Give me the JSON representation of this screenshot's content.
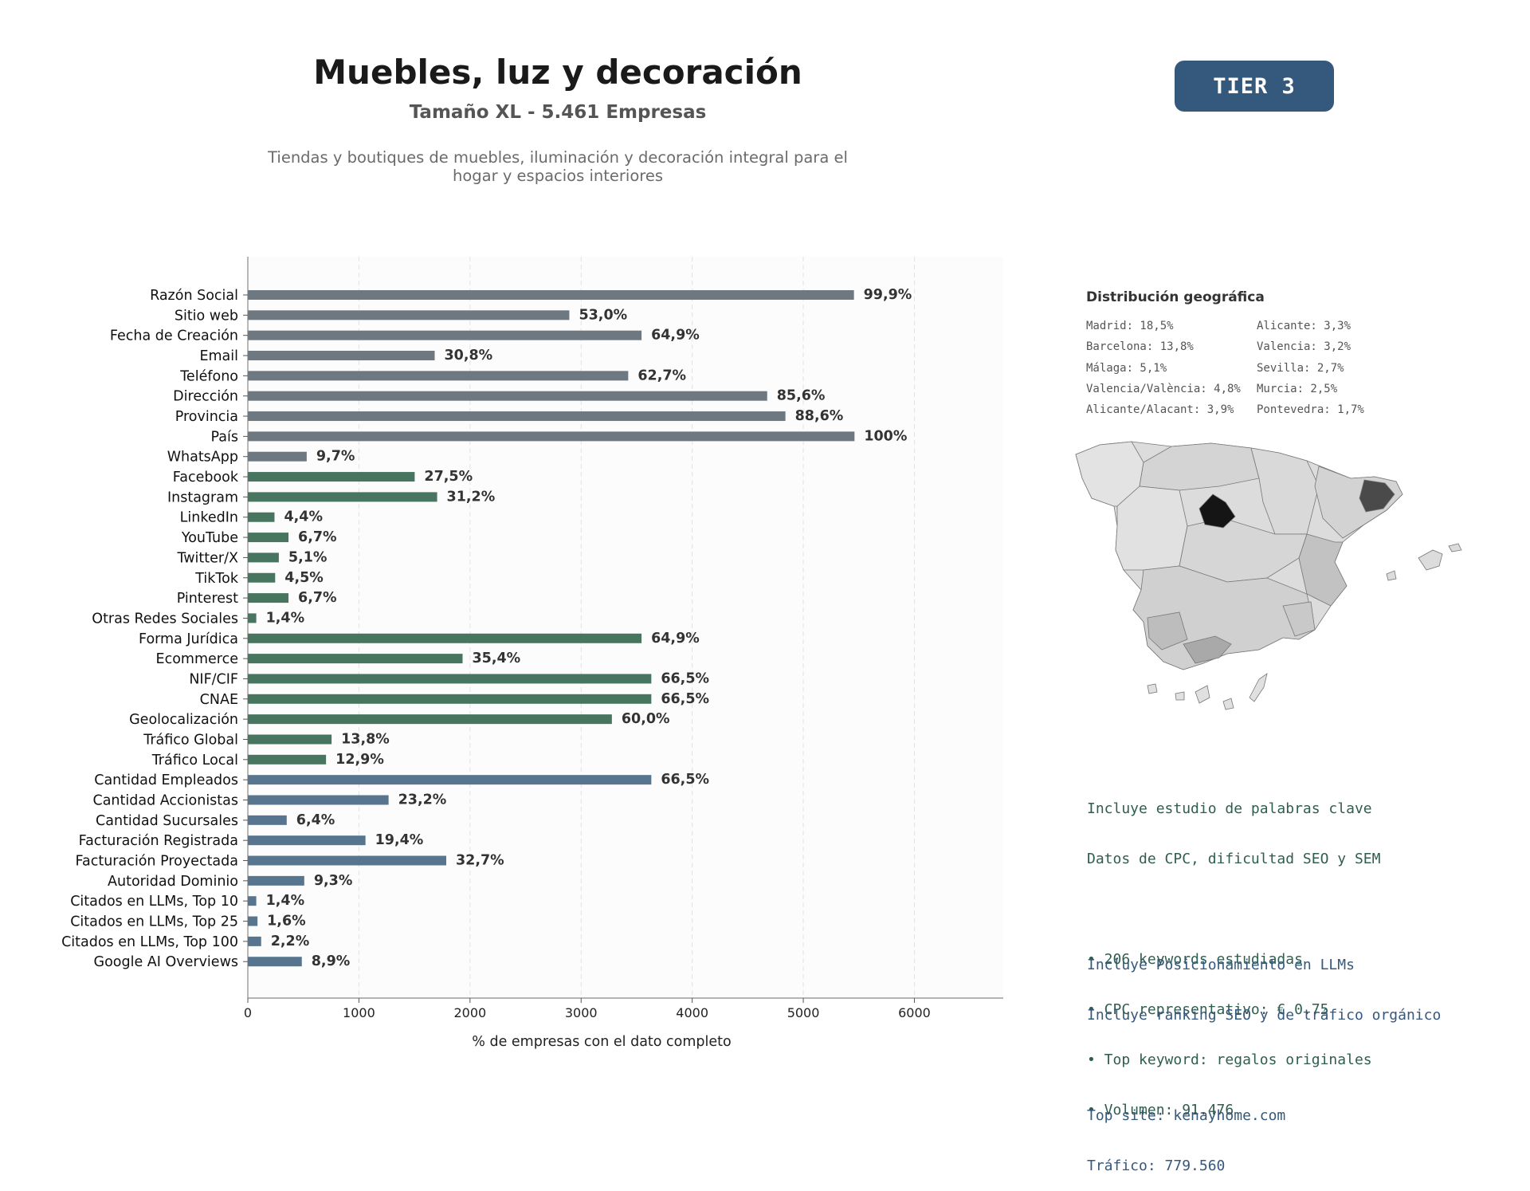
{
  "header": {
    "title": "Muebles, luz y decoración",
    "subtitle": "Tamaño XL - 5.461 Empresas",
    "description": "Tiendas y boutiques de muebles, iluminación y decoración integral para el hogar y espacios interiores",
    "tier_badge": "TIER 3"
  },
  "colors": {
    "basic": "#6e7881",
    "digital": "#47755f",
    "business": "#57758f",
    "badge": "#35587d",
    "madrid": "#151515",
    "barcelona": "#4a4a4a"
  },
  "chart_data": {
    "type": "bar",
    "orientation": "horizontal",
    "xlabel": "% de empresas con el dato completo",
    "ylabel": "",
    "xlim": [
      0,
      6800
    ],
    "xticks": [
      0,
      1000,
      2000,
      3000,
      4000,
      5000,
      6000
    ],
    "grid": "x dashed",
    "categories": [
      "Razón Social",
      "Sitio web",
      "Fecha de Creación",
      "Email",
      "Teléfono",
      "Dirección",
      "Provincia",
      "País",
      "WhatsApp",
      "Facebook",
      "Instagram",
      "LinkedIn",
      "YouTube",
      "Twitter/X",
      "TikTok",
      "Pinterest",
      "Otras Redes Sociales",
      "Forma Jurídica",
      "Ecommerce",
      "NIF/CIF",
      "CNAE",
      "Geolocalización",
      "Tráfico Global",
      "Tráfico Local",
      "Cantidad Empleados",
      "Cantidad Accionistas",
      "Cantidad Sucursales",
      "Facturación Registrada",
      "Facturación Proyectada",
      "Autoridad Dominio",
      "Citados en LLMs, Top 10",
      "Citados en LLMs, Top 25",
      "Citados en LLMs, Top 100",
      "Google AI Overviews"
    ],
    "values": [
      5456,
      2894,
      3544,
      1682,
      3424,
      4675,
      4839,
      5461,
      530,
      1502,
      1704,
      240,
      366,
      279,
      246,
      366,
      76,
      3544,
      1933,
      3632,
      3632,
      3277,
      754,
      704,
      3632,
      1267,
      350,
      1059,
      1786,
      508,
      76,
      87,
      120,
      486
    ],
    "labels": [
      "99,9%",
      "53,0%",
      "64,9%",
      "30,8%",
      "62,7%",
      "85,6%",
      "88,6%",
      "100%",
      "9,7%",
      "27,5%",
      "31,2%",
      "4,4%",
      "6,7%",
      "5,1%",
      "4,5%",
      "6,7%",
      "1,4%",
      "64,9%",
      "35,4%",
      "66,5%",
      "66,5%",
      "60,0%",
      "13,8%",
      "12,9%",
      "66,5%",
      "23,2%",
      "6,4%",
      "19,4%",
      "32,7%",
      "9,3%",
      "1,4%",
      "1,6%",
      "2,2%",
      "8,9%"
    ],
    "groups": [
      "basic",
      "basic",
      "basic",
      "basic",
      "basic",
      "basic",
      "basic",
      "basic",
      "basic",
      "digital",
      "digital",
      "digital",
      "digital",
      "digital",
      "digital",
      "digital",
      "digital",
      "digital",
      "digital",
      "digital",
      "digital",
      "digital",
      "digital",
      "digital",
      "business",
      "business",
      "business",
      "business",
      "business",
      "business",
      "business",
      "business",
      "business",
      "business"
    ]
  },
  "geo": {
    "title": "Distribución geográfica",
    "items": [
      "Madrid: 18,5%",
      "Alicante: 3,3%",
      "Barcelona: 13,8%",
      "Valencia: 3,2%",
      "Málaga: 5,1%",
      "Sevilla: 2,7%",
      "Valencia/València: 4,8%",
      "Murcia: 2,5%",
      "Alicante/Alacant: 3,9%",
      "Pontevedra: 1,7%"
    ]
  },
  "seo_panel": {
    "lines": [
      "Incluye estudio de palabras clave",
      "Datos de CPC, dificultad SEO y SEM",
      "",
      "• 206 keywords estudiadas",
      "• CPC representativo: € 0.75",
      "• Top keyword: regalos originales",
      "• Volumen: 91.476"
    ]
  },
  "llm_panel": {
    "lines": [
      "Incluye Posicionamiento en LLMs",
      "Incluye ranking SEO y de tráfico orgánico",
      "",
      "Top site: kenayhome.com",
      "Tráfico: 779.560"
    ]
  }
}
